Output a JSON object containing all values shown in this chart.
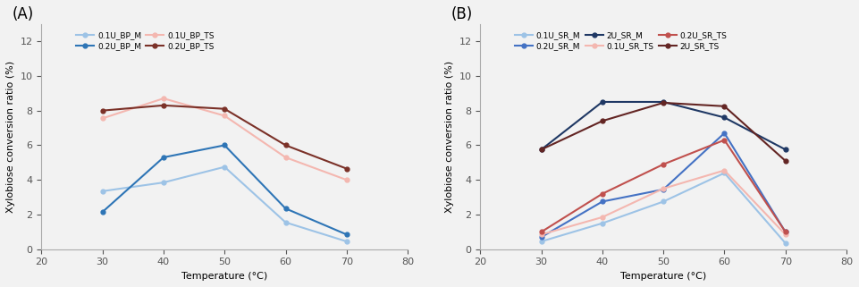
{
  "temps": [
    30,
    40,
    50,
    60,
    70
  ],
  "panel_A": {
    "title": "(A)",
    "legend_ncol": 2,
    "series": [
      {
        "label": "0.1U_BP_M",
        "color": "#9DC3E6",
        "values": [
          3.35,
          3.85,
          4.75,
          1.55,
          0.45
        ],
        "lw": 1.5
      },
      {
        "label": "0.2U_BP_M",
        "color": "#2E75B6",
        "values": [
          2.15,
          5.3,
          6.0,
          2.35,
          0.85
        ],
        "lw": 1.5
      },
      {
        "label": "0.1U_BP_TS",
        "color": "#F4B7B0",
        "values": [
          7.55,
          8.7,
          7.7,
          5.3,
          4.0
        ],
        "lw": 1.5
      },
      {
        "label": "0.2U_BP_TS",
        "color": "#7B3128",
        "values": [
          8.0,
          8.3,
          8.1,
          6.0,
          4.65
        ],
        "lw": 1.5
      }
    ]
  },
  "panel_B": {
    "title": "(B)",
    "legend_ncol": 3,
    "series": [
      {
        "label": "0.1U_SR_M",
        "color": "#9DC3E6",
        "values": [
          0.45,
          1.5,
          2.75,
          4.4,
          0.35
        ],
        "lw": 1.5
      },
      {
        "label": "0.2U_SR_M",
        "color": "#4472C4",
        "values": [
          0.7,
          2.75,
          3.45,
          6.7,
          1.0
        ],
        "lw": 1.5
      },
      {
        "label": "2U_SR_M",
        "color": "#1F3864",
        "values": [
          5.75,
          8.5,
          8.5,
          7.6,
          5.75
        ],
        "lw": 1.5
      },
      {
        "label": "0.1U_SR_TS",
        "color": "#F4B7B0",
        "values": [
          0.85,
          1.85,
          3.5,
          4.55,
          0.85
        ],
        "lw": 1.5
      },
      {
        "label": "0.2U_SR_TS",
        "color": "#C0504D",
        "values": [
          1.0,
          3.2,
          4.9,
          6.3,
          1.0
        ],
        "lw": 1.5
      },
      {
        "label": "2U_SR_TS",
        "color": "#632523",
        "values": [
          5.75,
          7.4,
          8.45,
          8.25,
          5.1
        ],
        "lw": 1.5
      }
    ]
  },
  "xlim": [
    20,
    80
  ],
  "ylim": [
    0,
    13
  ],
  "yticks": [
    0,
    2,
    4,
    6,
    8,
    10,
    12
  ],
  "xticks": [
    20,
    30,
    40,
    50,
    60,
    70,
    80
  ],
  "xlabel": "Temperature (°C)",
  "ylabel": "Xylobiose conversion ratio (%)",
  "bg_color": "#F2F2F2"
}
